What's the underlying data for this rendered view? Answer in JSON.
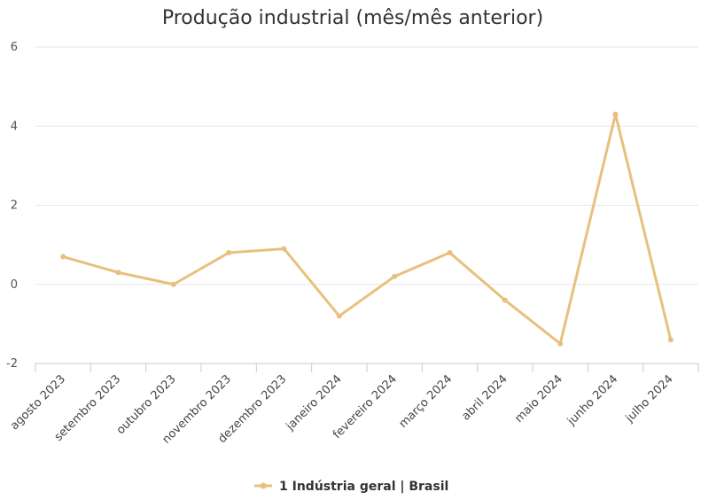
{
  "chart_data": {
    "type": "line",
    "title": "Produção industrial (mês/mês anterior)",
    "xlabel": "",
    "ylabel": "",
    "categories": [
      "agosto 2023",
      "setembro 2023",
      "outubro 2023",
      "novembro 2023",
      "dezembro 2023",
      "janeiro 2024",
      "fevereiro 2024",
      "março 2024",
      "abril 2024",
      "maio 2024",
      "junho 2024",
      "julho 2024"
    ],
    "series": [
      {
        "name": "1 Indústria geral | Brasil",
        "color": "#e8c07d",
        "values": [
          0.7,
          0.3,
          0.0,
          0.8,
          0.9,
          -0.8,
          0.2,
          0.8,
          -0.4,
          -1.5,
          4.3,
          -1.4
        ]
      }
    ],
    "ylim": [
      -2,
      6
    ],
    "yticks": [
      "-2",
      "0",
      "2",
      "4",
      "6"
    ],
    "grid": true,
    "legend_position": "bottom-center"
  }
}
